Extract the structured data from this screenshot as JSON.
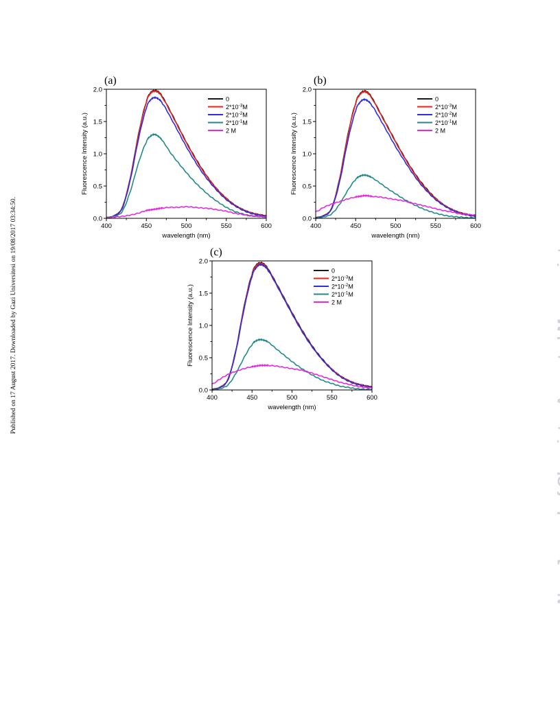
{
  "side_note": "Published on 17 August 2017. Downloaded by Gazi Universitesi on 19/08/2017 03:34:50.",
  "watermark": "New Journal of Chemistry Accepted Manuscript",
  "chart_data": [
    {
      "type": "line",
      "panel_label": "(a)",
      "xlabel": "wavelength (nm)",
      "ylabel": "Fluorescence Intensity (a.u.)",
      "xlim": [
        400,
        600
      ],
      "ylim": [
        0,
        2.0
      ],
      "xticks": [
        "400",
        "450",
        "500",
        "550",
        "600"
      ],
      "yticks": [
        "0.0",
        "0.5",
        "1.0",
        "1.5",
        "2.0"
      ],
      "legend_position": "top-right",
      "x": [
        400,
        410,
        420,
        430,
        440,
        450,
        455,
        460,
        465,
        470,
        480,
        490,
        500,
        510,
        520,
        530,
        540,
        550,
        560,
        570,
        580,
        590,
        600
      ],
      "series": [
        {
          "name": "0",
          "color": "#1a1a1a",
          "values": [
            0.01,
            0.04,
            0.17,
            0.63,
            1.29,
            1.8,
            1.94,
            1.98,
            1.96,
            1.88,
            1.66,
            1.42,
            1.18,
            0.96,
            0.76,
            0.58,
            0.43,
            0.31,
            0.21,
            0.14,
            0.09,
            0.06,
            0.04
          ]
        },
        {
          "name": "2*10",
          "sup": "-3",
          "unit": "M",
          "color": "#e8231c",
          "values": [
            0.01,
            0.04,
            0.17,
            0.63,
            1.28,
            1.79,
            1.93,
            1.97,
            1.95,
            1.87,
            1.65,
            1.41,
            1.17,
            0.95,
            0.75,
            0.58,
            0.43,
            0.31,
            0.21,
            0.14,
            0.09,
            0.06,
            0.04
          ]
        },
        {
          "name": "2*10",
          "sup": "-2",
          "unit": "M",
          "color": "#2c2ce0",
          "values": [
            0.01,
            0.04,
            0.16,
            0.6,
            1.22,
            1.7,
            1.83,
            1.87,
            1.85,
            1.78,
            1.57,
            1.34,
            1.11,
            0.9,
            0.71,
            0.55,
            0.41,
            0.29,
            0.2,
            0.13,
            0.08,
            0.05,
            0.03
          ]
        },
        {
          "name": "2*10",
          "sup": "-1",
          "unit": "M",
          "color": "#218a86",
          "values": [
            0.01,
            0.03,
            0.11,
            0.42,
            0.85,
            1.18,
            1.27,
            1.3,
            1.27,
            1.2,
            1.02,
            0.86,
            0.71,
            0.57,
            0.45,
            0.34,
            0.25,
            0.17,
            0.11,
            0.07,
            0.04,
            0.03,
            0.02
          ]
        },
        {
          "name": "2 M",
          "color": "#e828e0",
          "values": [
            0.0,
            0.02,
            0.03,
            0.05,
            0.08,
            0.12,
            0.13,
            0.14,
            0.15,
            0.16,
            0.17,
            0.17,
            0.18,
            0.17,
            0.16,
            0.15,
            0.13,
            0.11,
            0.08,
            0.06,
            0.04,
            0.03,
            0.02
          ]
        }
      ]
    },
    {
      "type": "line",
      "panel_label": "(b)",
      "xlabel": "wavelength (nm)",
      "ylabel": "Fluorescence Intensity (a.u.)",
      "xlim": [
        400,
        600
      ],
      "ylim": [
        0,
        2.0
      ],
      "xticks": [
        "400",
        "450",
        "500",
        "550",
        "600"
      ],
      "yticks": [
        "0.0",
        "0.5",
        "1.0",
        "1.5",
        "2.0"
      ],
      "legend_position": "top-right",
      "x": [
        400,
        410,
        420,
        430,
        440,
        450,
        455,
        460,
        465,
        470,
        480,
        490,
        500,
        510,
        520,
        530,
        540,
        550,
        560,
        570,
        580,
        590,
        600
      ],
      "series": [
        {
          "name": "0",
          "color": "#1a1a1a",
          "values": [
            0.01,
            0.04,
            0.16,
            0.62,
            1.28,
            1.78,
            1.92,
            1.97,
            1.95,
            1.87,
            1.65,
            1.42,
            1.19,
            0.97,
            0.77,
            0.59,
            0.44,
            0.31,
            0.21,
            0.14,
            0.09,
            0.06,
            0.04
          ]
        },
        {
          "name": "2*10",
          "sup": "-3",
          "unit": "M",
          "color": "#e8231c",
          "values": [
            0.01,
            0.04,
            0.16,
            0.61,
            1.27,
            1.77,
            1.91,
            1.96,
            1.94,
            1.86,
            1.64,
            1.41,
            1.18,
            0.96,
            0.76,
            0.58,
            0.43,
            0.31,
            0.21,
            0.14,
            0.09,
            0.06,
            0.04
          ]
        },
        {
          "name": "2*10",
          "sup": "-2",
          "unit": "M",
          "color": "#2c2ce0",
          "values": [
            0.01,
            0.04,
            0.15,
            0.57,
            1.19,
            1.66,
            1.79,
            1.84,
            1.82,
            1.75,
            1.55,
            1.33,
            1.11,
            0.91,
            0.72,
            0.55,
            0.41,
            0.29,
            0.2,
            0.13,
            0.08,
            0.05,
            0.03
          ]
        },
        {
          "name": "2*10",
          "sup": "-1",
          "unit": "M",
          "color": "#218a86",
          "values": [
            0.0,
            0.02,
            0.07,
            0.22,
            0.43,
            0.6,
            0.65,
            0.67,
            0.66,
            0.63,
            0.55,
            0.46,
            0.38,
            0.3,
            0.23,
            0.17,
            0.12,
            0.08,
            0.05,
            0.03,
            0.02,
            0.01,
            0.01
          ]
        },
        {
          "name": "2 M",
          "color": "#e828e0",
          "values": [
            0.1,
            0.17,
            0.22,
            0.26,
            0.3,
            0.33,
            0.34,
            0.35,
            0.35,
            0.34,
            0.33,
            0.31,
            0.29,
            0.27,
            0.24,
            0.21,
            0.18,
            0.15,
            0.12,
            0.1,
            0.07,
            0.06,
            0.05
          ]
        }
      ]
    },
    {
      "type": "line",
      "panel_label": "(c)",
      "xlabel": "wavelength (nm)",
      "ylabel": "Fluorescence Intensity (a.u.)",
      "xlim": [
        400,
        600
      ],
      "ylim": [
        0,
        2.0
      ],
      "xticks": [
        "400",
        "450",
        "500",
        "550",
        "600"
      ],
      "yticks": [
        "0.0",
        "0.5",
        "1.0",
        "1.5",
        "2.0"
      ],
      "legend_position": "top-right",
      "x": [
        400,
        410,
        420,
        430,
        440,
        450,
        455,
        460,
        465,
        470,
        480,
        490,
        500,
        510,
        520,
        530,
        540,
        550,
        560,
        570,
        580,
        590,
        600
      ],
      "series": [
        {
          "name": "0",
          "color": "#1a1a1a",
          "values": [
            0.01,
            0.04,
            0.17,
            0.63,
            1.29,
            1.79,
            1.93,
            1.97,
            1.95,
            1.87,
            1.66,
            1.43,
            1.2,
            0.98,
            0.78,
            0.6,
            0.45,
            0.32,
            0.22,
            0.15,
            0.1,
            0.07,
            0.05
          ]
        },
        {
          "name": "2*10",
          "sup": "-3",
          "unit": "M",
          "color": "#e8231c",
          "values": [
            0.01,
            0.04,
            0.17,
            0.62,
            1.28,
            1.78,
            1.92,
            1.96,
            1.94,
            1.86,
            1.65,
            1.42,
            1.19,
            0.97,
            0.77,
            0.59,
            0.44,
            0.32,
            0.22,
            0.15,
            0.1,
            0.07,
            0.05
          ]
        },
        {
          "name": "2*10",
          "sup": "-2",
          "unit": "M",
          "color": "#2c2ce0",
          "values": [
            0.01,
            0.04,
            0.16,
            0.61,
            1.25,
            1.75,
            1.89,
            1.94,
            1.92,
            1.85,
            1.64,
            1.41,
            1.18,
            0.96,
            0.76,
            0.59,
            0.44,
            0.31,
            0.21,
            0.14,
            0.09,
            0.06,
            0.04
          ]
        },
        {
          "name": "2*10",
          "sup": "-1",
          "unit": "M",
          "color": "#218a86",
          "values": [
            0.0,
            0.02,
            0.08,
            0.26,
            0.5,
            0.7,
            0.76,
            0.78,
            0.77,
            0.74,
            0.64,
            0.54,
            0.44,
            0.35,
            0.27,
            0.2,
            0.14,
            0.1,
            0.06,
            0.04,
            0.02,
            0.01,
            0.01
          ]
        },
        {
          "name": "2 M",
          "color": "#e828e0",
          "values": [
            0.09,
            0.17,
            0.24,
            0.29,
            0.33,
            0.36,
            0.37,
            0.38,
            0.38,
            0.38,
            0.37,
            0.35,
            0.33,
            0.31,
            0.28,
            0.24,
            0.2,
            0.16,
            0.12,
            0.09,
            0.06,
            0.04,
            0.03
          ]
        }
      ]
    }
  ]
}
